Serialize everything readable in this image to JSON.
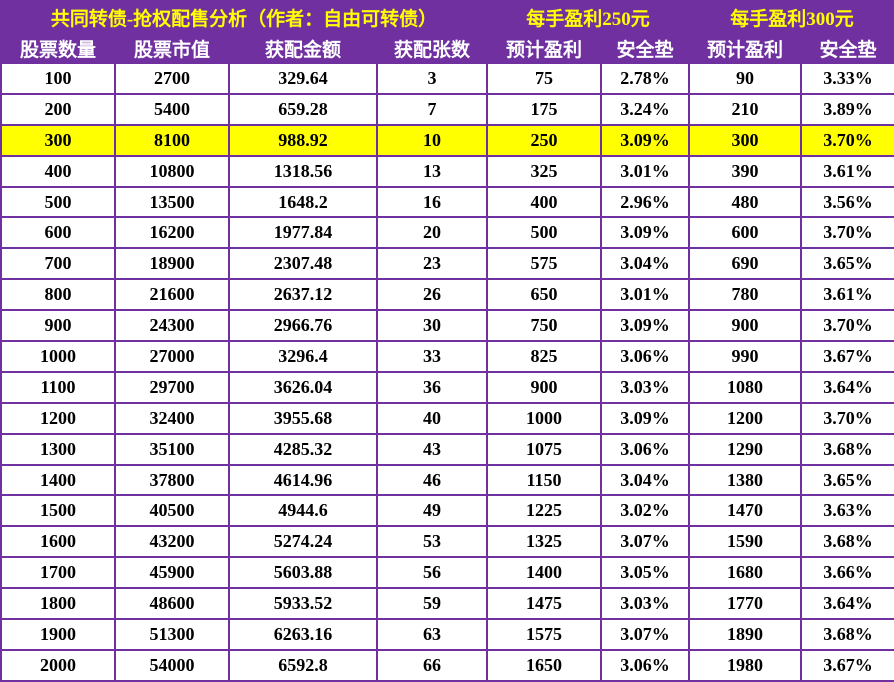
{
  "chart_data": {
    "type": "table",
    "title": "共同转债-抢权配售分析（作者：自由可转债）",
    "group_headers": [
      "每手盈利250元",
      "每手盈利300元"
    ],
    "columns": [
      "股票数量",
      "股票市值",
      "获配金额",
      "获配张数",
      "预计盈利",
      "安全垫",
      "预计盈利",
      "安全垫"
    ],
    "rows": [
      [
        "100",
        "2700",
        "329.64",
        "3",
        "75",
        "2.78%",
        "90",
        "3.33%"
      ],
      [
        "200",
        "5400",
        "659.28",
        "7",
        "175",
        "3.24%",
        "210",
        "3.89%"
      ],
      [
        "300",
        "8100",
        "988.92",
        "10",
        "250",
        "3.09%",
        "300",
        "3.70%"
      ],
      [
        "400",
        "10800",
        "1318.56",
        "13",
        "325",
        "3.01%",
        "390",
        "3.61%"
      ],
      [
        "500",
        "13500",
        "1648.2",
        "16",
        "400",
        "2.96%",
        "480",
        "3.56%"
      ],
      [
        "600",
        "16200",
        "1977.84",
        "20",
        "500",
        "3.09%",
        "600",
        "3.70%"
      ],
      [
        "700",
        "18900",
        "2307.48",
        "23",
        "575",
        "3.04%",
        "690",
        "3.65%"
      ],
      [
        "800",
        "21600",
        "2637.12",
        "26",
        "650",
        "3.01%",
        "780",
        "3.61%"
      ],
      [
        "900",
        "24300",
        "2966.76",
        "30",
        "750",
        "3.09%",
        "900",
        "3.70%"
      ],
      [
        "1000",
        "27000",
        "3296.4",
        "33",
        "825",
        "3.06%",
        "990",
        "3.67%"
      ],
      [
        "1100",
        "29700",
        "3626.04",
        "36",
        "900",
        "3.03%",
        "1080",
        "3.64%"
      ],
      [
        "1200",
        "32400",
        "3955.68",
        "40",
        "1000",
        "3.09%",
        "1200",
        "3.70%"
      ],
      [
        "1300",
        "35100",
        "4285.32",
        "43",
        "1075",
        "3.06%",
        "1290",
        "3.68%"
      ],
      [
        "1400",
        "37800",
        "4614.96",
        "46",
        "1150",
        "3.04%",
        "1380",
        "3.65%"
      ],
      [
        "1500",
        "40500",
        "4944.6",
        "49",
        "1225",
        "3.02%",
        "1470",
        "3.63%"
      ],
      [
        "1600",
        "43200",
        "5274.24",
        "53",
        "1325",
        "3.07%",
        "1590",
        "3.68%"
      ],
      [
        "1700",
        "45900",
        "5603.88",
        "56",
        "1400",
        "3.05%",
        "1680",
        "3.66%"
      ],
      [
        "1800",
        "48600",
        "5933.52",
        "59",
        "1475",
        "3.03%",
        "1770",
        "3.64%"
      ],
      [
        "1900",
        "51300",
        "6263.16",
        "63",
        "1575",
        "3.07%",
        "1890",
        "3.68%"
      ],
      [
        "2000",
        "54000",
        "6592.8",
        "66",
        "1650",
        "3.06%",
        "1980",
        "3.67%"
      ]
    ],
    "highlight_row_index": 2,
    "highlighted_row_value": "300"
  },
  "colors": {
    "header_bg": "#7030A0",
    "title_text": "#FFFF00",
    "header_text": "#FFFFFF",
    "highlight_bg": "#FFFF00",
    "border": "#7030A0",
    "body_text": "#000000"
  }
}
